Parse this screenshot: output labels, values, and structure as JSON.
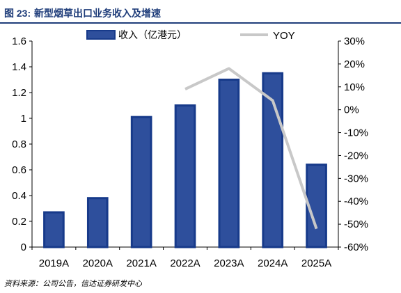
{
  "figure": {
    "label": "图 23:",
    "title": "新型烟草出口业务收入及增速",
    "source": "资料来源：公司公告，信达证券研发中心"
  },
  "chart_data": {
    "type": "bar",
    "categories": [
      "2019A",
      "2020A",
      "2021A",
      "2022A",
      "2023A",
      "2024A",
      "2025A"
    ],
    "series": [
      {
        "name": "收入（亿港元）",
        "type": "bar",
        "axis": "left",
        "values": [
          0.27,
          0.38,
          1.01,
          1.1,
          1.3,
          1.35,
          0.64
        ]
      },
      {
        "name": "YOY",
        "type": "line",
        "axis": "right",
        "values": [
          null,
          null,
          null,
          0.09,
          0.18,
          0.04,
          -0.52
        ]
      }
    ],
    "ylim_left": [
      0,
      1.6
    ],
    "yticks_left": [
      "0",
      "0.2",
      "0.4",
      "0.6",
      "0.8",
      "1",
      "1.2",
      "1.4",
      "1.6"
    ],
    "ylim_right": [
      -0.6,
      0.3
    ],
    "yticks_right": [
      "-60%",
      "-50%",
      "-40%",
      "-30%",
      "-20%",
      "-10%",
      "0%",
      "10%",
      "20%",
      "30%"
    ],
    "legend_position": "top",
    "grid": false,
    "colors": {
      "bar_fill": "#2e4f9c",
      "bar_edge": "#173a8a",
      "line": "#c8c8c8",
      "title": "#1f3d7a"
    }
  }
}
